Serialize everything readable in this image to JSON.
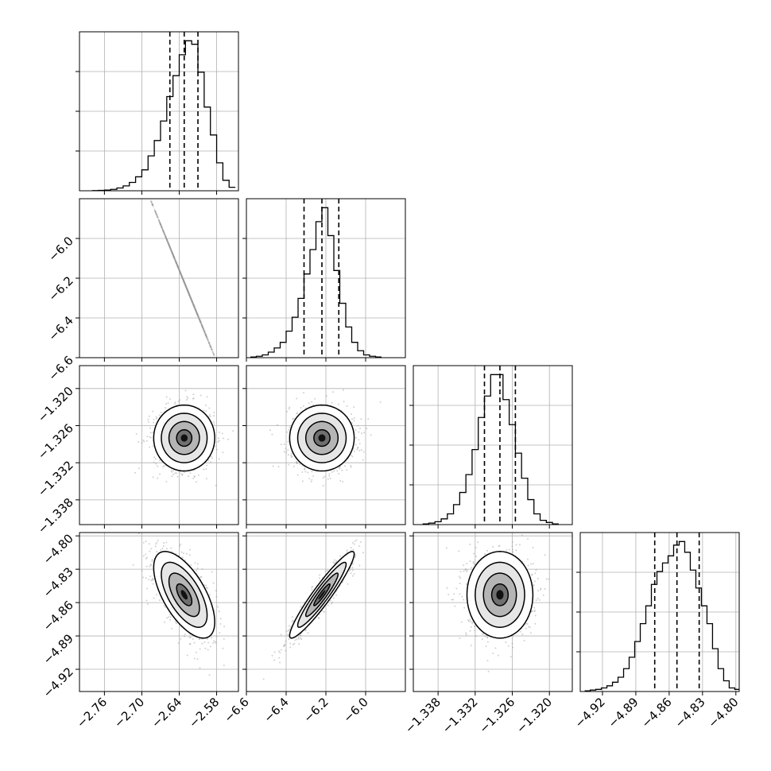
{
  "chart_data": {
    "type": "corner",
    "grid": true,
    "parameters": [
      {
        "range": [
          -2.8,
          -2.545
        ],
        "ticks": [
          -2.76,
          -2.7,
          -2.64,
          -2.58
        ],
        "tick_labels": [
          "−2.76",
          "−2.70",
          "−2.64",
          "−2.58"
        ],
        "quantiles": [
          -2.655,
          -2.632,
          -2.61
        ],
        "histogram": {
          "bin_edges": [
            -2.78,
            -2.77,
            -2.76,
            -2.75,
            -2.74,
            -2.73,
            -2.72,
            -2.71,
            -2.7,
            -2.69,
            -2.68,
            -2.67,
            -2.66,
            -2.65,
            -2.64,
            -2.63,
            -2.62,
            -2.61,
            -2.6,
            -2.59,
            -2.58,
            -2.57,
            -2.56,
            -2.55
          ],
          "counts": [
            0.2,
            0.5,
            1,
            2,
            4,
            7,
            12,
            20,
            30,
            50,
            72,
            100,
            135,
            165,
            195,
            215,
            210,
            170,
            120,
            80,
            40,
            15,
            5
          ]
        }
      },
      {
        "range": [
          -6.6,
          -5.8
        ],
        "ticks": [
          -6.6,
          -6.4,
          -6.2,
          -6.0
        ],
        "tick_labels": [
          "−6.6",
          "−6.4",
          "−6.2",
          "−6.0"
        ],
        "quantiles": [
          -6.31,
          -6.22,
          -6.135
        ],
        "histogram": {
          "bin_edges": [
            -6.58,
            -6.55,
            -6.52,
            -6.49,
            -6.46,
            -6.43,
            -6.4,
            -6.37,
            -6.34,
            -6.31,
            -6.28,
            -6.25,
            -6.22,
            -6.19,
            -6.16,
            -6.13,
            -6.1,
            -6.07,
            -6.04,
            -6.01,
            -5.98,
            -5.95,
            -5.92
          ],
          "counts": [
            1,
            2,
            4,
            8,
            14,
            22,
            38,
            58,
            85,
            120,
            155,
            195,
            215,
            175,
            125,
            78,
            44,
            22,
            10,
            4,
            2,
            1
          ]
        }
      },
      {
        "range": [
          -1.342,
          -1.3163
        ],
        "ticks": [
          -1.338,
          -1.332,
          -1.326,
          -1.32
        ],
        "tick_labels": [
          "−1.338",
          "−1.332",
          "−1.326",
          "−1.320"
        ],
        "quantiles": [
          -1.3305,
          -1.328,
          -1.3255
        ],
        "histogram": {
          "bin_edges": [
            -1.3405,
            -1.3395,
            -1.3385,
            -1.3375,
            -1.3365,
            -1.3355,
            -1.3345,
            -1.3335,
            -1.3325,
            -1.3315,
            -1.3305,
            -1.3295,
            -1.3285,
            -1.3275,
            -1.3265,
            -1.3255,
            -1.3245,
            -1.3235,
            -1.3225,
            -1.3215,
            -1.3205,
            -1.3195,
            -1.3185
          ],
          "counts": [
            1,
            2,
            4,
            8,
            15,
            28,
            45,
            70,
            105,
            150,
            180,
            210,
            210,
            175,
            140,
            100,
            65,
            35,
            15,
            6,
            3,
            1
          ]
        }
      },
      {
        "range": [
          -4.94,
          -4.797
        ],
        "ticks": [
          -4.92,
          -4.89,
          -4.86,
          -4.83,
          -4.8
        ],
        "tick_labels": [
          "−4.92",
          "−4.89",
          "−4.86",
          "−4.83",
          "−4.80"
        ],
        "quantiles": [
          -4.873,
          -4.853,
          -4.833
        ],
        "histogram": {
          "bin_edges": [
            -4.936,
            -4.931,
            -4.926,
            -4.921,
            -4.916,
            -4.911,
            -4.906,
            -4.901,
            -4.896,
            -4.891,
            -4.886,
            -4.881,
            -4.876,
            -4.871,
            -4.866,
            -4.861,
            -4.856,
            -4.851,
            -4.846,
            -4.841,
            -4.836,
            -4.831,
            -4.826,
            -4.821,
            -4.816,
            -4.811,
            -4.806,
            -4.801,
            -4.797
          ],
          "counts": [
            1,
            2,
            3,
            5,
            8,
            13,
            20,
            32,
            48,
            70,
            95,
            120,
            150,
            168,
            180,
            190,
            205,
            210,
            195,
            170,
            145,
            120,
            95,
            60,
            32,
            15,
            5,
            3
          ]
        }
      }
    ],
    "pairs": [
      {
        "x": 0,
        "y": 1,
        "center": [
          -2.632,
          -6.22
        ],
        "cov": [
          [
            0.0006,
            -0.0046
          ],
          [
            -0.0046,
            0.0066
          ]
        ]
      },
      {
        "x": 0,
        "y": 2,
        "center": [
          -2.632,
          -1.328
        ],
        "cov": [
          [
            0.0006,
            0.0
          ],
          [
            0.0,
            7.1e-06
          ]
        ]
      },
      {
        "x": 1,
        "y": 2,
        "center": [
          -6.22,
          -1.328
        ],
        "cov": [
          [
            0.0066,
            0.0
          ],
          [
            0.0,
            7.1e-06
          ]
        ]
      },
      {
        "x": 0,
        "y": 3,
        "center": [
          -2.632,
          -4.853
        ],
        "cov": [
          [
            0.0006,
            -0.0003
          ],
          [
            -0.0003,
            0.00038
          ]
        ]
      },
      {
        "x": 1,
        "y": 3,
        "center": [
          -6.22,
          -4.853
        ],
        "cov": [
          [
            0.0066,
            0.00149
          ],
          [
            0.00149,
            0.00038
          ]
        ]
      },
      {
        "x": 2,
        "y": 3,
        "center": [
          -1.328,
          -4.853
        ],
        "cov": [
          [
            7.1e-06,
            0.0
          ],
          [
            0.0,
            0.00038
          ]
        ]
      }
    ],
    "contour_levels_sigma": [
      0.5,
      1.0,
      1.5,
      2.0
    ]
  }
}
